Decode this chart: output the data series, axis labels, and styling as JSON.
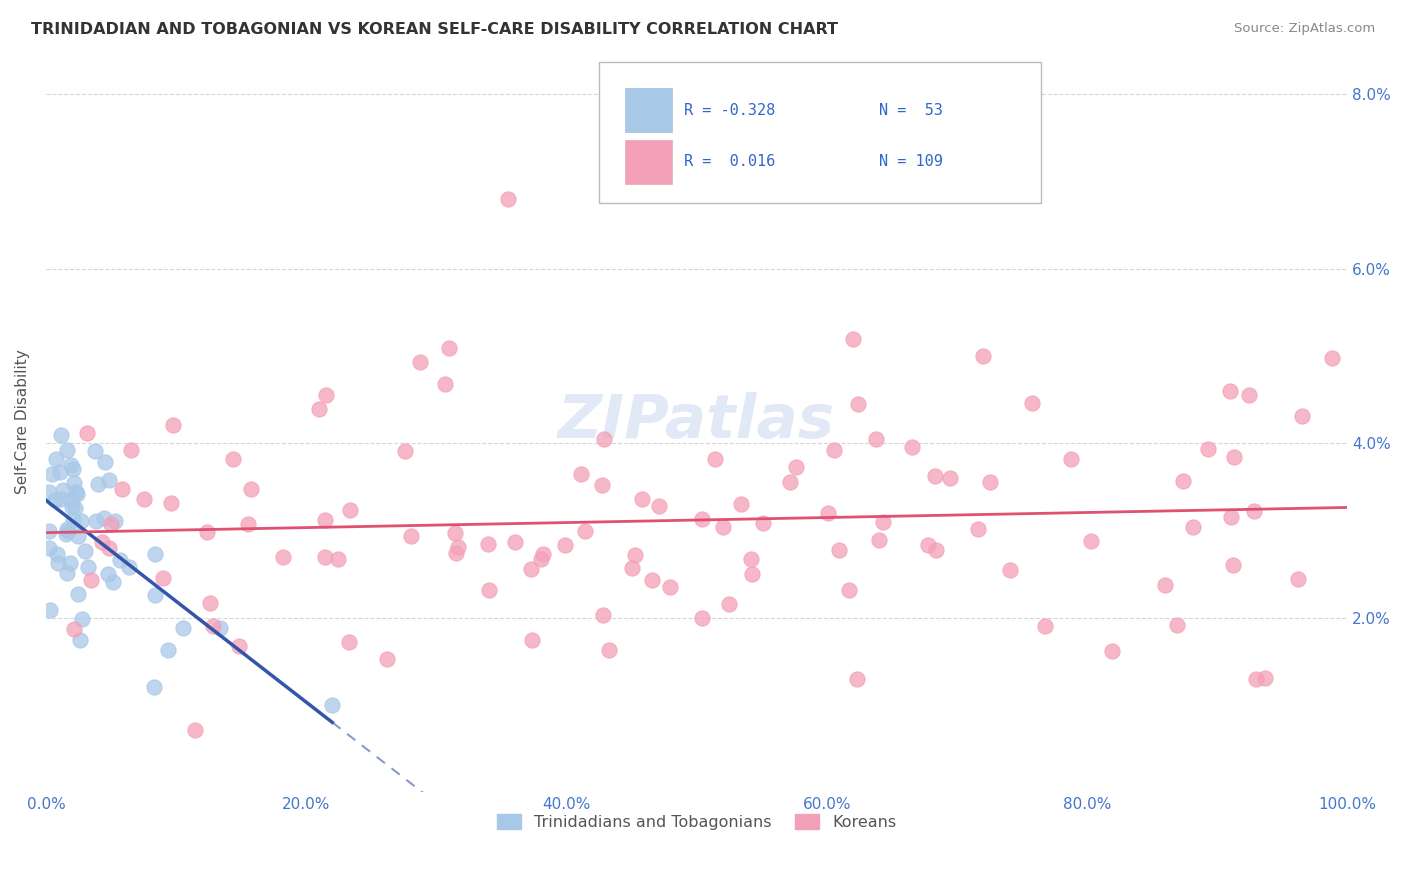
{
  "title": "TRINIDADIAN AND TOBAGONIAN VS KOREAN SELF-CARE DISABILITY CORRELATION CHART",
  "source": "Source: ZipAtlas.com",
  "ylabel": "Self-Care Disability",
  "xlim": [
    0.0,
    1.0
  ],
  "ylim": [
    0.0,
    0.085
  ],
  "xtick_vals": [
    0.0,
    0.2,
    0.4,
    0.6,
    0.8,
    1.0
  ],
  "xtick_labels": [
    "0.0%",
    "20.0%",
    "40.0%",
    "60.0%",
    "80.0%",
    "100.0%"
  ],
  "ytick_vals": [
    0.0,
    0.02,
    0.04,
    0.06,
    0.08
  ],
  "ytick_labels_right": [
    "",
    "2.0%",
    "4.0%",
    "6.0%",
    "8.0%"
  ],
  "color_trinidadian": "#a8c8e8",
  "color_korean": "#f4a0b8",
  "color_trinidadian_line": "#3355aa",
  "color_korean_line": "#e05070",
  "color_trendline_dashed": "#8899cc",
  "watermark": "ZIPatlas",
  "background_color": "#ffffff",
  "r_trin": -0.328,
  "n_trin": 53,
  "r_kor": 0.016,
  "n_kor": 109,
  "legend_color_r": "#3366cc",
  "legend_color_text": "#333333"
}
